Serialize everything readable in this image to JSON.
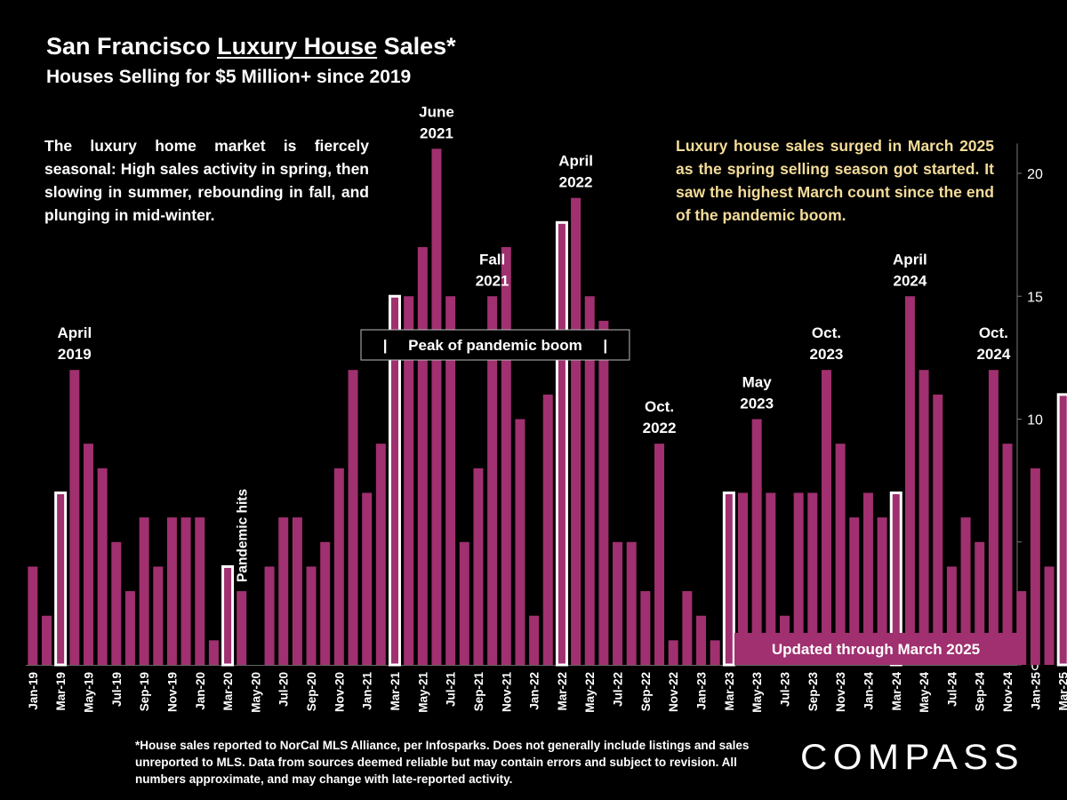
{
  "header": {
    "title_pre": "San Francisco ",
    "title_underlined": "Luxury House",
    "title_post": " Sales*",
    "subtitle": "Houses Selling for $5 Million+ since 2019"
  },
  "notes": {
    "left": "The luxury home market is fiercely seasonal:  High sales activity in spring, then slowing in summer, rebounding in fall, and plunging in mid-winter.",
    "right": "Luxury house sales surged in March 2025 as the spring selling season got started. It saw the highest March count since the end of the pandemic boom."
  },
  "footnote": "*House sales reported to NorCal MLS Alliance, per Infosparks. Does not generally include listings and sales unreported to MLS. Data from sources deemed reliable but may contain errors and subject to revision.  All numbers approximate, and may change with late-reported activity.",
  "logo": {
    "text": "COMPASS"
  },
  "colors": {
    "bar": "#a0306f",
    "background": "#000000",
    "highlight_outline": "#ffffff",
    "note_right": "#f4dc99"
  },
  "chart_data": {
    "type": "bar",
    "title": "San Francisco Luxury House Sales*",
    "subtitle": "Houses Selling for $5 Million+ since 2019",
    "categories": [
      "Jan-19",
      "Feb-19",
      "Mar-19",
      "Apr-19",
      "May-19",
      "Jun-19",
      "Jul-19",
      "Aug-19",
      "Sep-19",
      "Oct-19",
      "Nov-19",
      "Dec-19",
      "Jan-20",
      "Feb-20",
      "Mar-20",
      "Apr-20",
      "May-20",
      "Jun-20",
      "Jul-20",
      "Aug-20",
      "Sep-20",
      "Oct-20",
      "Nov-20",
      "Dec-20",
      "Jan-21",
      "Feb-21",
      "Mar-21",
      "Apr-21",
      "May-21",
      "Jun-21",
      "Jul-21",
      "Aug-21",
      "Sep-21",
      "Oct-21",
      "Nov-21",
      "Dec-21",
      "Jan-22",
      "Feb-22",
      "Mar-22",
      "Apr-22",
      "May-22",
      "Jun-22",
      "Jul-22",
      "Aug-22",
      "Sep-22",
      "Oct-22",
      "Nov-22",
      "Dec-22",
      "Jan-23",
      "Feb-23",
      "Mar-23",
      "Apr-23",
      "May-23",
      "Jun-23",
      "Jul-23",
      "Aug-23",
      "Sep-23",
      "Oct-23",
      "Nov-23",
      "Dec-23",
      "Jan-24",
      "Feb-24",
      "Mar-24",
      "Apr-24",
      "May-24",
      "Jun-24",
      "Jul-24",
      "Aug-24",
      "Sep-24",
      "Oct-24",
      "Nov-24",
      "Dec-24",
      "Jan-25",
      "Feb-25",
      "Mar-25"
    ],
    "tick_labels": [
      "Jan-19",
      "Mar-19",
      "May-19",
      "Jul-19",
      "Sep-19",
      "Nov-19",
      "Jan-20",
      "Mar-20",
      "May-20",
      "Jul-20",
      "Sep-20",
      "Nov-20",
      "Jan-21",
      "Mar-21",
      "May-21",
      "Jul-21",
      "Sep-21",
      "Nov-21",
      "Jan-22",
      "Mar-22",
      "May-22",
      "Jul-22",
      "Sep-22",
      "Nov-22",
      "Jan-23",
      "Mar-23",
      "May-23",
      "Jul-23",
      "Sep-23",
      "Nov-23",
      "Jan-24",
      "Mar-24",
      "May-24",
      "Jul-24",
      "Sep-24",
      "Nov-24",
      "Jan-25",
      "Mar-25"
    ],
    "values": [
      4,
      2,
      7,
      12,
      9,
      8,
      5,
      3,
      6,
      4,
      6,
      6,
      6,
      1,
      4,
      3,
      0,
      4,
      6,
      6,
      4,
      5,
      8,
      12,
      7,
      9,
      15,
      15,
      17,
      21,
      15,
      5,
      8,
      15,
      17,
      10,
      2,
      11,
      18,
      19,
      15,
      14,
      5,
      5,
      3,
      9,
      1,
      3,
      2,
      1,
      7,
      7,
      10,
      7,
      2,
      7,
      7,
      12,
      9,
      6,
      7,
      6,
      7,
      15,
      12,
      11,
      4,
      6,
      5,
      12,
      9,
      3,
      8,
      4,
      11
    ],
    "highlighted_categories": [
      "Mar-19",
      "Mar-20",
      "Mar-21",
      "Mar-22",
      "Mar-23",
      "Mar-24",
      "Mar-25"
    ],
    "ylim": [
      0,
      21
    ],
    "yticks": [
      0,
      5,
      10,
      15,
      20
    ],
    "y_axis_side": "right",
    "grid": false,
    "legend": "none",
    "annotations": [
      {
        "lines": [
          "April",
          "2019"
        ],
        "category": "Apr-19"
      },
      {
        "lines": [
          "June",
          "2021"
        ],
        "category": "Jun-21"
      },
      {
        "lines": [
          "Fall",
          "2021"
        ],
        "category": "Oct-21"
      },
      {
        "lines": [
          "April",
          "2022"
        ],
        "category": "Apr-22"
      },
      {
        "lines": [
          "Oct.",
          "2022"
        ],
        "category": "Oct-22"
      },
      {
        "lines": [
          "May",
          "2023"
        ],
        "category": "May-23"
      },
      {
        "lines": [
          "Oct.",
          "2023"
        ],
        "category": "Oct-23"
      },
      {
        "lines": [
          "April",
          "2024"
        ],
        "category": "Apr-24"
      },
      {
        "lines": [
          "Oct.",
          "2024"
        ],
        "category": "Oct-24"
      }
    ],
    "vertical_note": {
      "text": "Pandemic hits",
      "category": "Apr-20"
    },
    "peak_box": {
      "text": "|     Peak of pandemic boom     |",
      "from": "Mar-21",
      "to": "Mar-22"
    },
    "update_badge": "Updated through March 2025"
  }
}
